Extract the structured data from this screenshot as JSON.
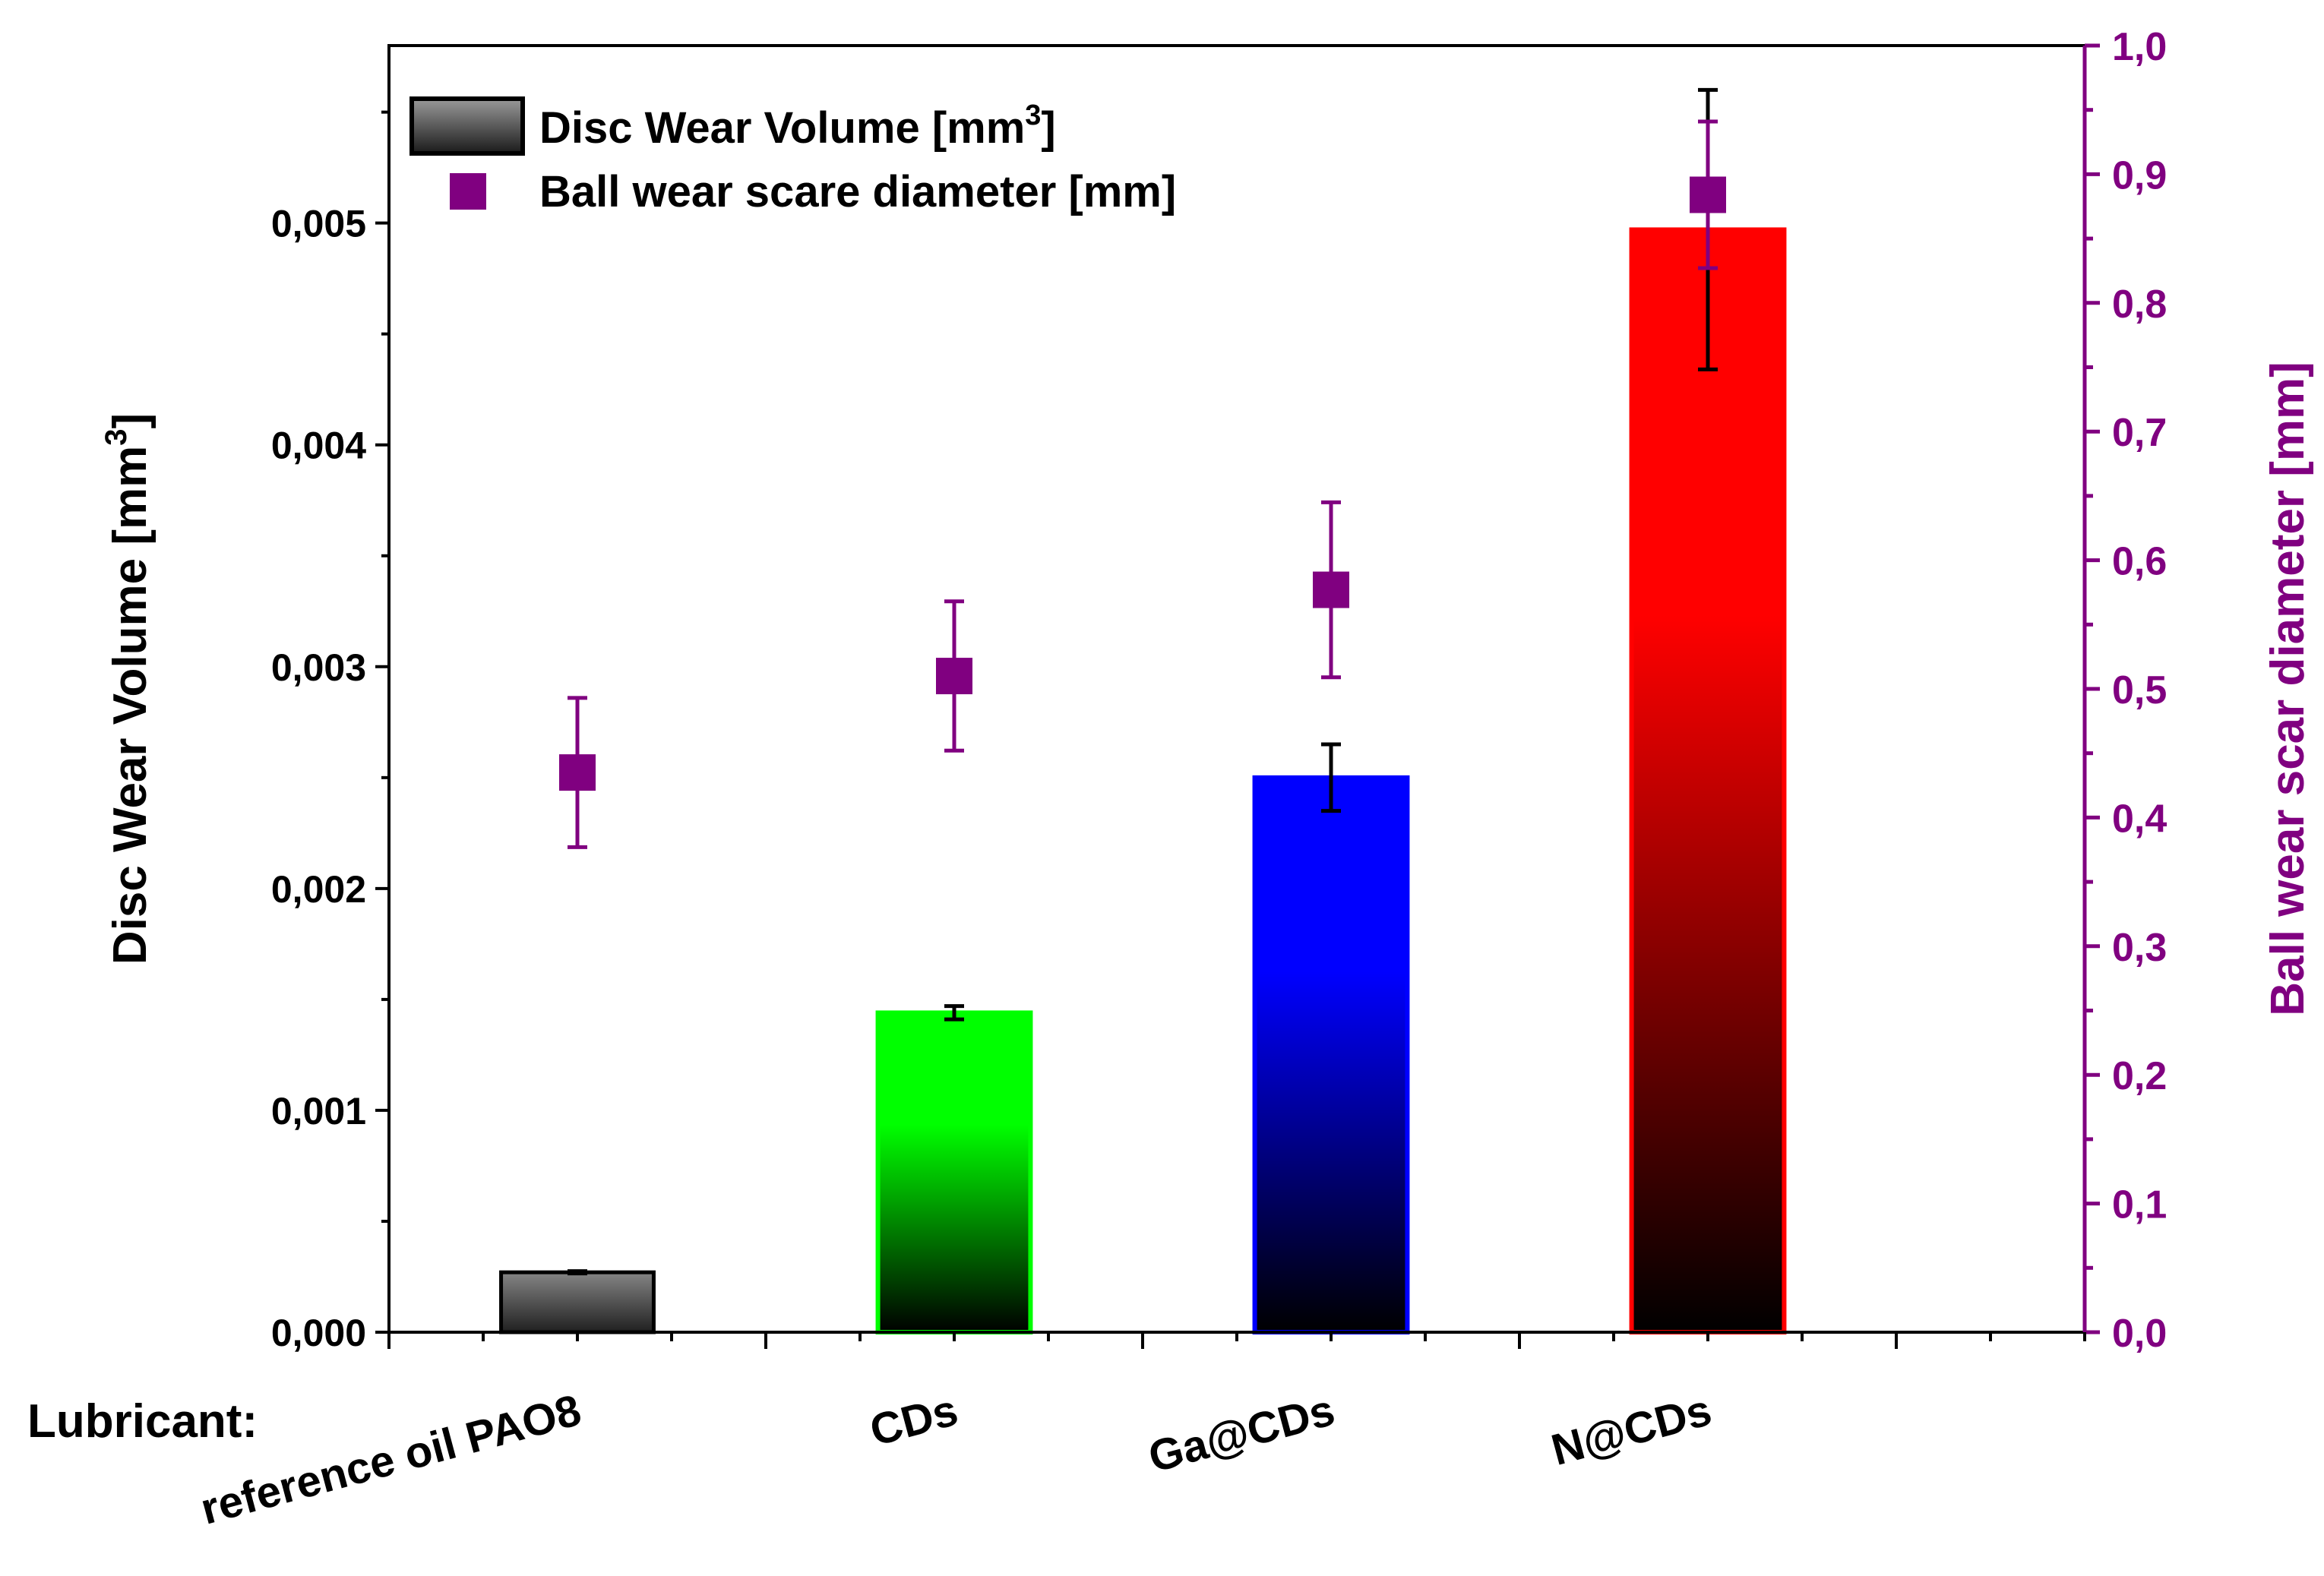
{
  "chart_data": {
    "type": "bar",
    "categories": [
      "reference oil PAO8",
      "CDs",
      "Ga@CDs",
      "N@CDs"
    ],
    "category_prefix": "Lubricant:",
    "series": [
      {
        "name": "Disc Wear Volume",
        "legend_label": "Disc Wear Volume  [mm",
        "legend_sup": "3",
        "legend_close": "]",
        "axis": "left",
        "kind": "bar",
        "values": [
          0.00027,
          0.00144,
          0.0025,
          0.00497
        ],
        "errors": [
          5e-06,
          3e-05,
          0.00015,
          0.00063
        ],
        "colors": [
          "#808080",
          "#00ff00",
          "#0000ff",
          "#ff0000"
        ]
      },
      {
        "name": "Ball wear scare diameter",
        "legend_label": "Ball wear scare diameter [mm]",
        "axis": "right",
        "kind": "scatter",
        "values": [
          0.435,
          0.51,
          0.577,
          0.884
        ],
        "errors": [
          0.058,
          0.058,
          0.068,
          0.057
        ],
        "color": "#800080"
      }
    ],
    "ylabel_left": "Disc Wear Volume [mm",
    "ylabel_left_sup": "3",
    "ylabel_left_close": "]",
    "ylabel_right": "Ball wear scar diameter [mm]",
    "ylim_left": [
      0,
      0.0058
    ],
    "ylim_right": [
      0,
      1.0
    ],
    "left_ticks": [
      "0,000",
      "0,001",
      "0,002",
      "0,003",
      "0,004",
      "0,005"
    ],
    "left_tick_values": [
      0,
      0.001,
      0.002,
      0.003,
      0.004,
      0.005
    ],
    "right_ticks": [
      "0,0",
      "0,1",
      "0,2",
      "0,3",
      "0,4",
      "0,5",
      "0,6",
      "0,7",
      "0,8",
      "0,9",
      "1,0"
    ],
    "right_tick_values": [
      0,
      0.1,
      0.2,
      0.3,
      0.4,
      0.5,
      0.6,
      0.7,
      0.8,
      0.9,
      1.0
    ],
    "legend_position": "top-left",
    "accent_color": "#800080"
  }
}
